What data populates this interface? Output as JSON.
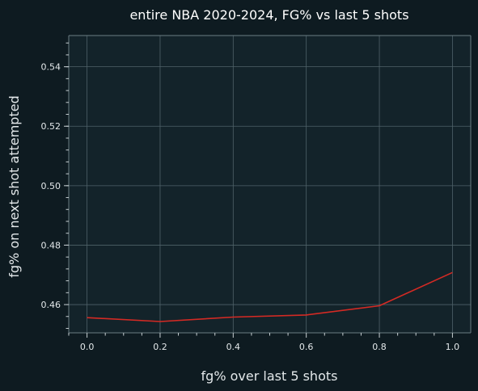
{
  "chart_data": {
    "type": "line",
    "title": "entire NBA 2020-2024, FG% vs last 5 shots",
    "xlabel": "fg% over last 5 shots",
    "ylabel": "fg% on next shot attempted",
    "x": [
      0.0,
      0.2,
      0.4,
      0.6,
      0.8,
      1.0
    ],
    "series": [
      {
        "values": [
          0.4556,
          0.4543,
          0.4558,
          0.4565,
          0.4596,
          0.4708
        ]
      }
    ],
    "xlim": [
      -0.05,
      1.05
    ],
    "ylim": [
      0.4505,
      0.5505
    ],
    "xticks": [
      "0.0",
      "0.2",
      "0.4",
      "0.6",
      "0.8",
      "1.0"
    ],
    "yticks": [
      "0.46",
      "0.48",
      "0.50",
      "0.52",
      "0.54"
    ],
    "grid": true,
    "colors": {
      "background": "#0e1b21",
      "plot_background": "#13232a",
      "line": "#d42a24"
    }
  }
}
